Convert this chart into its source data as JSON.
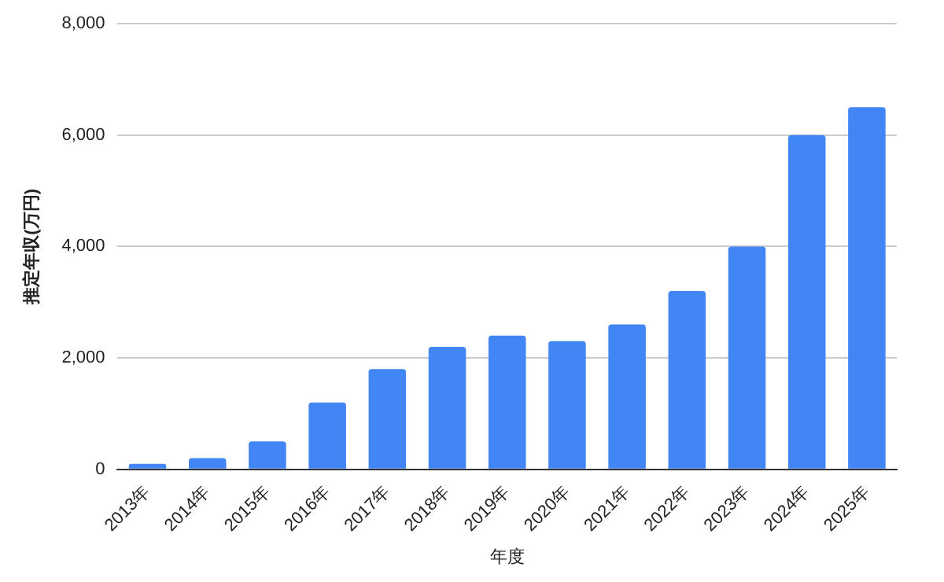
{
  "chart_data": {
    "type": "bar",
    "xlabel": "年度",
    "ylabel": "推定年収(万円)",
    "categories": [
      "2013年",
      "2014年",
      "2015年",
      "2016年",
      "2017年",
      "2018年",
      "2019年",
      "2020年",
      "2021年",
      "2022年",
      "2023年",
      "2024年",
      "2025年"
    ],
    "values": [
      100,
      200,
      500,
      1200,
      1800,
      2200,
      2400,
      2300,
      2600,
      3200,
      4000,
      6000,
      6500
    ],
    "color": "#4285f4",
    "ylim": [
      0,
      8000
    ],
    "yticks": [
      {
        "value": 0,
        "label": "0"
      },
      {
        "value": 2000,
        "label": "2,000"
      },
      {
        "value": 4000,
        "label": "4,000"
      },
      {
        "value": 6000,
        "label": "6,000"
      },
      {
        "value": 8000,
        "label": "8,000"
      }
    ],
    "grid": "y",
    "legend": false
  }
}
